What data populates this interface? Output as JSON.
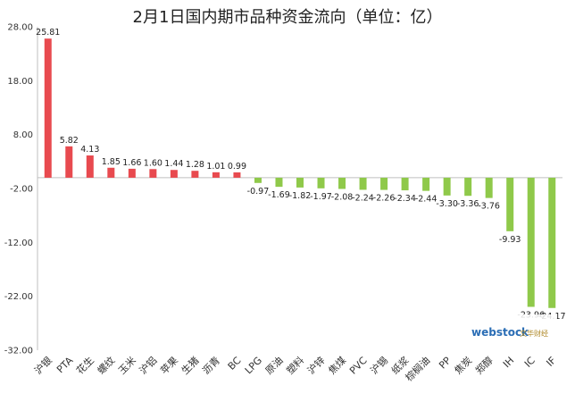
{
  "chart_data": {
    "type": "bar",
    "title": "2月1日国内期市品种资金流向（单位：亿）",
    "xlabel": "",
    "ylabel": "",
    "ylim": [
      -32,
      28
    ],
    "yticks": [
      "28.00",
      "18.00",
      "8.00",
      "-2.00",
      "-12.00",
      "-22.00",
      "-32.00"
    ],
    "grid": false,
    "legend": "none",
    "categories": [
      "沪银",
      "PTA",
      "花生",
      "螺纹",
      "玉米",
      "沪铝",
      "苹果",
      "生猪",
      "沥青",
      "BC",
      "LPG",
      "原油",
      "塑料",
      "沪锌",
      "焦煤",
      "PVC",
      "沪锡",
      "纸浆",
      "棕榈油",
      "PP",
      "焦炭",
      "郑醇",
      "IH",
      "IC",
      "IF"
    ],
    "values": [
      25.81,
      5.82,
      4.13,
      1.85,
      1.66,
      1.6,
      1.44,
      1.28,
      1.01,
      0.99,
      -0.97,
      -1.69,
      -1.82,
      -1.97,
      -2.08,
      -2.24,
      -2.26,
      -2.34,
      -2.44,
      -3.3,
      -3.36,
      -3.76,
      -9.93,
      -23.96,
      -24.17
    ],
    "value_labels": [
      "25.81",
      "5.82",
      "4.13",
      "1.85",
      "1.66",
      "1.60",
      "1.44",
      "1.28",
      "1.01",
      "0.99",
      "-0.97",
      "-1.69",
      "-1.82",
      "-1.97",
      "-2.08",
      "-2.24",
      "-2.26",
      "-2.34",
      "-2.44",
      "-3.30",
      "-3.36",
      "-3.76",
      "-9.93",
      "-23.96",
      "-24.17"
    ],
    "colors": {
      "positive": "#e84a4f",
      "negative": "#8fc94a",
      "axis": "#bfbfbf"
    }
  },
  "watermark": {
    "brand": "webstock",
    "sub": "文华财经"
  }
}
